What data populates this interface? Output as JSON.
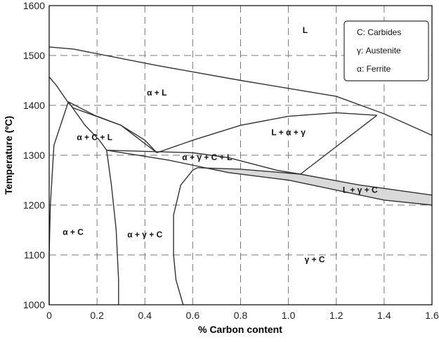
{
  "chart_data": {
    "type": "phase-diagram",
    "xlabel": "% Carbon content",
    "ylabel": "Temperature (ºC)",
    "xlim": [
      0,
      1.6
    ],
    "ylim": [
      1000,
      1600
    ],
    "x_ticks": [
      "0",
      "0.2",
      "0.4",
      "0.6",
      "0.8",
      "1.0",
      "1.2",
      "1.4",
      "1.6"
    ],
    "y_ticks": [
      "1000",
      "1100",
      "1200",
      "1300",
      "1400",
      "1500",
      "1600"
    ],
    "grid": true,
    "legend_position": "top-right",
    "legend": [
      {
        "label": "C: Carbides"
      },
      {
        "label": "γ: Austenite"
      },
      {
        "label": "α: Ferrite"
      }
    ],
    "regions": [
      {
        "label": "L",
        "x": 1.07,
        "y": 1545
      },
      {
        "label": "α + L",
        "x": 0.45,
        "y": 1420
      },
      {
        "label": "α + C + L",
        "x": 0.19,
        "y": 1330
      },
      {
        "label": "L + α + γ",
        "x": 1.0,
        "y": 1340
      },
      {
        "label": "α + γ + C + L",
        "x": 0.66,
        "y": 1290
      },
      {
        "label": "L + γ + C",
        "x": 1.3,
        "y": 1225
      },
      {
        "label": "α + C",
        "x": 0.1,
        "y": 1140
      },
      {
        "label": "α + γ + C",
        "x": 0.4,
        "y": 1135
      },
      {
        "label": "γ + C",
        "x": 1.11,
        "y": 1085
      }
    ],
    "boundaries": [
      {
        "points": [
          [
            0,
            1517
          ],
          [
            0.1,
            1513
          ],
          [
            0.45,
            1480
          ],
          [
            0.8,
            1450
          ],
          [
            1.2,
            1418
          ],
          [
            1.4,
            1383
          ],
          [
            1.6,
            1340
          ]
        ]
      },
      {
        "points": [
          [
            0,
            1457
          ],
          [
            0.03,
            1440
          ],
          [
            0.08,
            1405
          ],
          [
            0.1,
            1395
          ],
          [
            0.3,
            1360
          ],
          [
            0.45,
            1305
          ]
        ]
      },
      {
        "points": [
          [
            0.08,
            1407
          ],
          [
            0.19,
            1380
          ],
          [
            0.3,
            1360
          ],
          [
            0.4,
            1330
          ],
          [
            0.45,
            1305
          ]
        ]
      },
      {
        "points": [
          [
            0.08,
            1407
          ],
          [
            0.02,
            1320
          ],
          [
            0.005,
            1200
          ],
          [
            0,
            1100
          ],
          [
            0,
            1000
          ]
        ]
      },
      {
        "points": [
          [
            0.08,
            1407
          ],
          [
            0.15,
            1360
          ],
          [
            0.21,
            1330
          ],
          [
            0.24,
            1310
          ]
        ]
      },
      {
        "points": [
          [
            0.45,
            1305
          ],
          [
            0.6,
            1330
          ],
          [
            0.8,
            1360
          ],
          [
            1.0,
            1378
          ],
          [
            1.2,
            1385
          ],
          [
            1.37,
            1380
          ]
        ]
      },
      {
        "points": [
          [
            1.37,
            1380
          ],
          [
            1.05,
            1262
          ]
        ]
      },
      {
        "points": [
          [
            0.24,
            1310
          ],
          [
            0.6,
            1305
          ],
          [
            0.75,
            1295
          ],
          [
            0.95,
            1270
          ],
          [
            1.05,
            1262
          ]
        ]
      },
      {
        "points": [
          [
            0.24,
            1310
          ],
          [
            0.5,
            1290
          ],
          [
            0.75,
            1265
          ],
          [
            1.0,
            1250
          ],
          [
            1.2,
            1230
          ],
          [
            1.4,
            1210
          ],
          [
            1.6,
            1200
          ]
        ]
      },
      {
        "points": [
          [
            0.62,
            1275
          ],
          [
            0.8,
            1272
          ],
          [
            1.05,
            1262
          ],
          [
            1.3,
            1240
          ],
          [
            1.6,
            1220
          ]
        ]
      },
      {
        "points": [
          [
            0.24,
            1310
          ],
          [
            0.26,
            1240
          ],
          [
            0.28,
            1150
          ],
          [
            0.29,
            1050
          ],
          [
            0.29,
            1000
          ]
        ]
      },
      {
        "points": [
          [
            0.62,
            1275
          ],
          [
            0.6,
            1270
          ],
          [
            0.55,
            1240
          ],
          [
            0.52,
            1180
          ],
          [
            0.52,
            1100
          ],
          [
            0.53,
            1050
          ],
          [
            0.56,
            1000
          ]
        ]
      }
    ],
    "shaded_region": {
      "points": [
        [
          0.62,
          1275
        ],
        [
          0.8,
          1272
        ],
        [
          1.05,
          1262
        ],
        [
          1.3,
          1240
        ],
        [
          1.6,
          1220
        ],
        [
          1.6,
          1200
        ],
        [
          1.4,
          1210
        ],
        [
          1.2,
          1230
        ],
        [
          1.0,
          1250
        ],
        [
          0.75,
          1265
        ]
      ],
      "fill": "#d9d9d9"
    },
    "colors": {
      "line": "#333333",
      "grid": "#777777",
      "shade": "#d9d9d9"
    }
  }
}
